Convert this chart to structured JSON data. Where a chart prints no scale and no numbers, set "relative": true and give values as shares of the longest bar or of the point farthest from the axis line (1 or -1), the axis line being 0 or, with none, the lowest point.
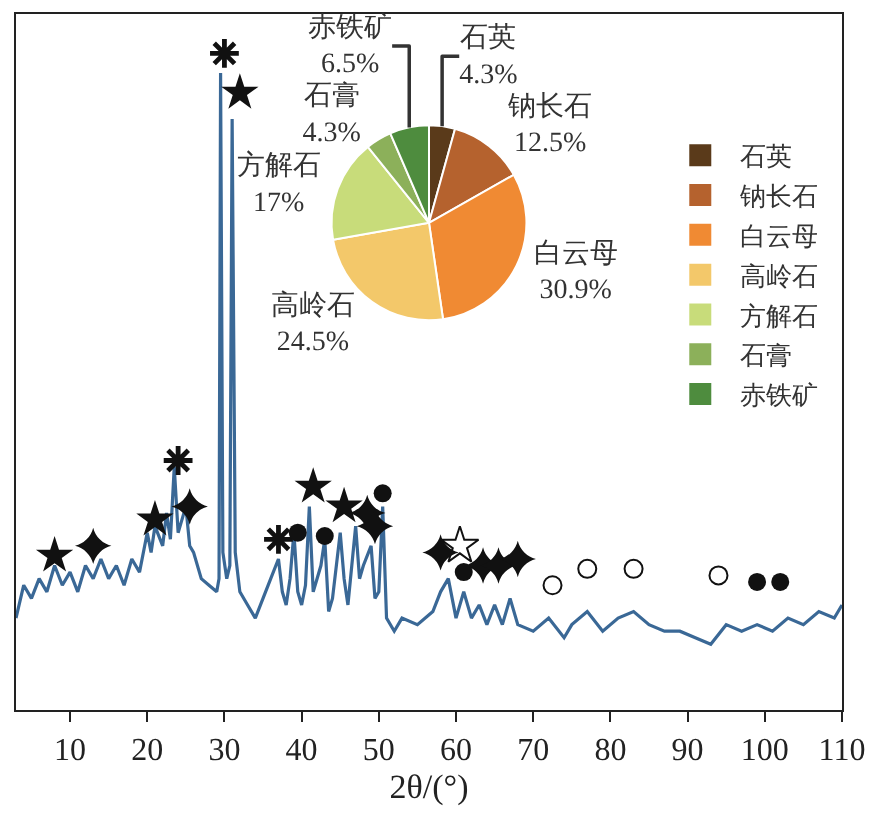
{
  "chart_data": [
    {
      "type": "line",
      "relative": true,
      "xlabel": "2θ/(°)",
      "xlim": [
        3,
        110
      ],
      "xticks": [
        10,
        20,
        30,
        40,
        50,
        60,
        70,
        80,
        90,
        100,
        110
      ],
      "series": [
        {
          "type": "line",
          "color": "#3a6896",
          "marker": "none",
          "x": [
            3,
            4,
            5,
            6,
            7,
            8,
            9,
            10,
            11,
            12,
            13,
            14,
            15,
            16,
            17,
            18,
            19,
            20,
            20.5,
            21,
            22,
            22.5,
            23,
            23.5,
            24,
            24.5,
            25,
            25.5,
            26,
            27,
            28,
            29,
            29.3,
            29.5,
            29.8,
            30.3,
            30.7,
            31,
            31.4,
            32,
            33,
            34,
            35,
            36,
            37,
            37.5,
            38,
            38.5,
            39,
            39.5,
            40,
            40.5,
            41,
            41.5,
            42,
            42.5,
            43,
            43.5,
            44,
            45,
            45.5,
            46,
            47,
            47.5,
            48,
            49,
            49.5,
            50,
            50.5,
            51,
            52,
            53,
            55,
            57,
            58,
            59,
            60,
            61,
            62,
            63,
            64,
            65,
            66,
            67,
            68,
            70,
            72,
            74,
            75,
            77,
            79,
            81,
            83,
            85,
            87,
            89,
            91,
            93,
            95,
            97,
            99,
            101,
            103,
            105,
            107,
            109,
            110
          ],
          "values": [
            0.14,
            0.19,
            0.17,
            0.2,
            0.18,
            0.22,
            0.19,
            0.21,
            0.18,
            0.22,
            0.2,
            0.23,
            0.2,
            0.22,
            0.19,
            0.23,
            0.21,
            0.27,
            0.24,
            0.28,
            0.25,
            0.3,
            0.26,
            0.37,
            0.27,
            0.29,
            0.31,
            0.25,
            0.24,
            0.2,
            0.19,
            0.18,
            0.2,
            0.97,
            0.24,
            0.2,
            0.22,
            0.9,
            0.24,
            0.18,
            0.16,
            0.14,
            0.17,
            0.2,
            0.23,
            0.18,
            0.16,
            0.2,
            0.27,
            0.18,
            0.16,
            0.19,
            0.31,
            0.18,
            0.2,
            0.22,
            0.26,
            0.15,
            0.17,
            0.27,
            0.2,
            0.16,
            0.28,
            0.2,
            0.22,
            0.25,
            0.17,
            0.18,
            0.31,
            0.14,
            0.12,
            0.14,
            0.13,
            0.15,
            0.18,
            0.2,
            0.14,
            0.18,
            0.14,
            0.16,
            0.13,
            0.16,
            0.13,
            0.17,
            0.13,
            0.12,
            0.14,
            0.11,
            0.13,
            0.15,
            0.12,
            0.14,
            0.15,
            0.13,
            0.12,
            0.12,
            0.11,
            0.1,
            0.13,
            0.12,
            0.13,
            0.12,
            0.14,
            0.13,
            0.15,
            0.14,
            0.16
          ]
        },
        {
          "type": "scatter",
          "marker": "cross",
          "color": "#111111",
          "x": [
            30,
            24,
            37
          ],
          "values": [
            1.0,
            0.38,
            0.26
          ]
        },
        {
          "type": "scatter",
          "marker": "star",
          "color": "#111111",
          "x": [
            8,
            21,
            32,
            41.5,
            45.5
          ],
          "values": [
            0.235,
            0.29,
            0.94,
            0.34,
            0.31
          ]
        },
        {
          "type": "scatter",
          "marker": "star",
          "color": "#ffffff",
          "x": [
            60.5
          ],
          "values": [
            0.25
          ]
        },
        {
          "type": "scatter",
          "marker": "diamond",
          "color": "#111111",
          "x": [
            13,
            25.5,
            48.5,
            49.5,
            58,
            63.5,
            65.5,
            68
          ],
          "values": [
            0.25,
            0.31,
            0.3,
            0.28,
            0.24,
            0.22,
            0.22,
            0.23
          ]
        },
        {
          "type": "scatter",
          "marker": "circle",
          "color": "#111111",
          "x": [
            39.5,
            43,
            50.5,
            61,
            99,
            102
          ],
          "values": [
            0.27,
            0.265,
            0.33,
            0.21,
            0.195,
            0.195
          ]
        },
        {
          "type": "scatter",
          "marker": "circle",
          "color": "#ffffff",
          "x": [
            72.5,
            77,
            83,
            94
          ],
          "values": [
            0.19,
            0.215,
            0.215,
            0.205
          ]
        }
      ]
    },
    {
      "type": "pie",
      "legend": "right",
      "categories": [
        "石英",
        "钠长石",
        "白云母",
        "高岭石",
        "方解石",
        "石膏",
        "赤铁矿"
      ],
      "values": [
        4.3,
        12.5,
        30.9,
        24.5,
        17,
        4.3,
        6.5
      ],
      "value_labels": [
        "4.3%",
        "12.5%",
        "30.9%",
        "24.5%",
        "17%",
        "4.3%",
        "6.5%"
      ],
      "colors": [
        "#5a3a1a",
        "#b5622e",
        "#f08a33",
        "#f3c86a",
        "#c8dc7a",
        "#8cb05a",
        "#4e8c3e"
      ]
    }
  ]
}
